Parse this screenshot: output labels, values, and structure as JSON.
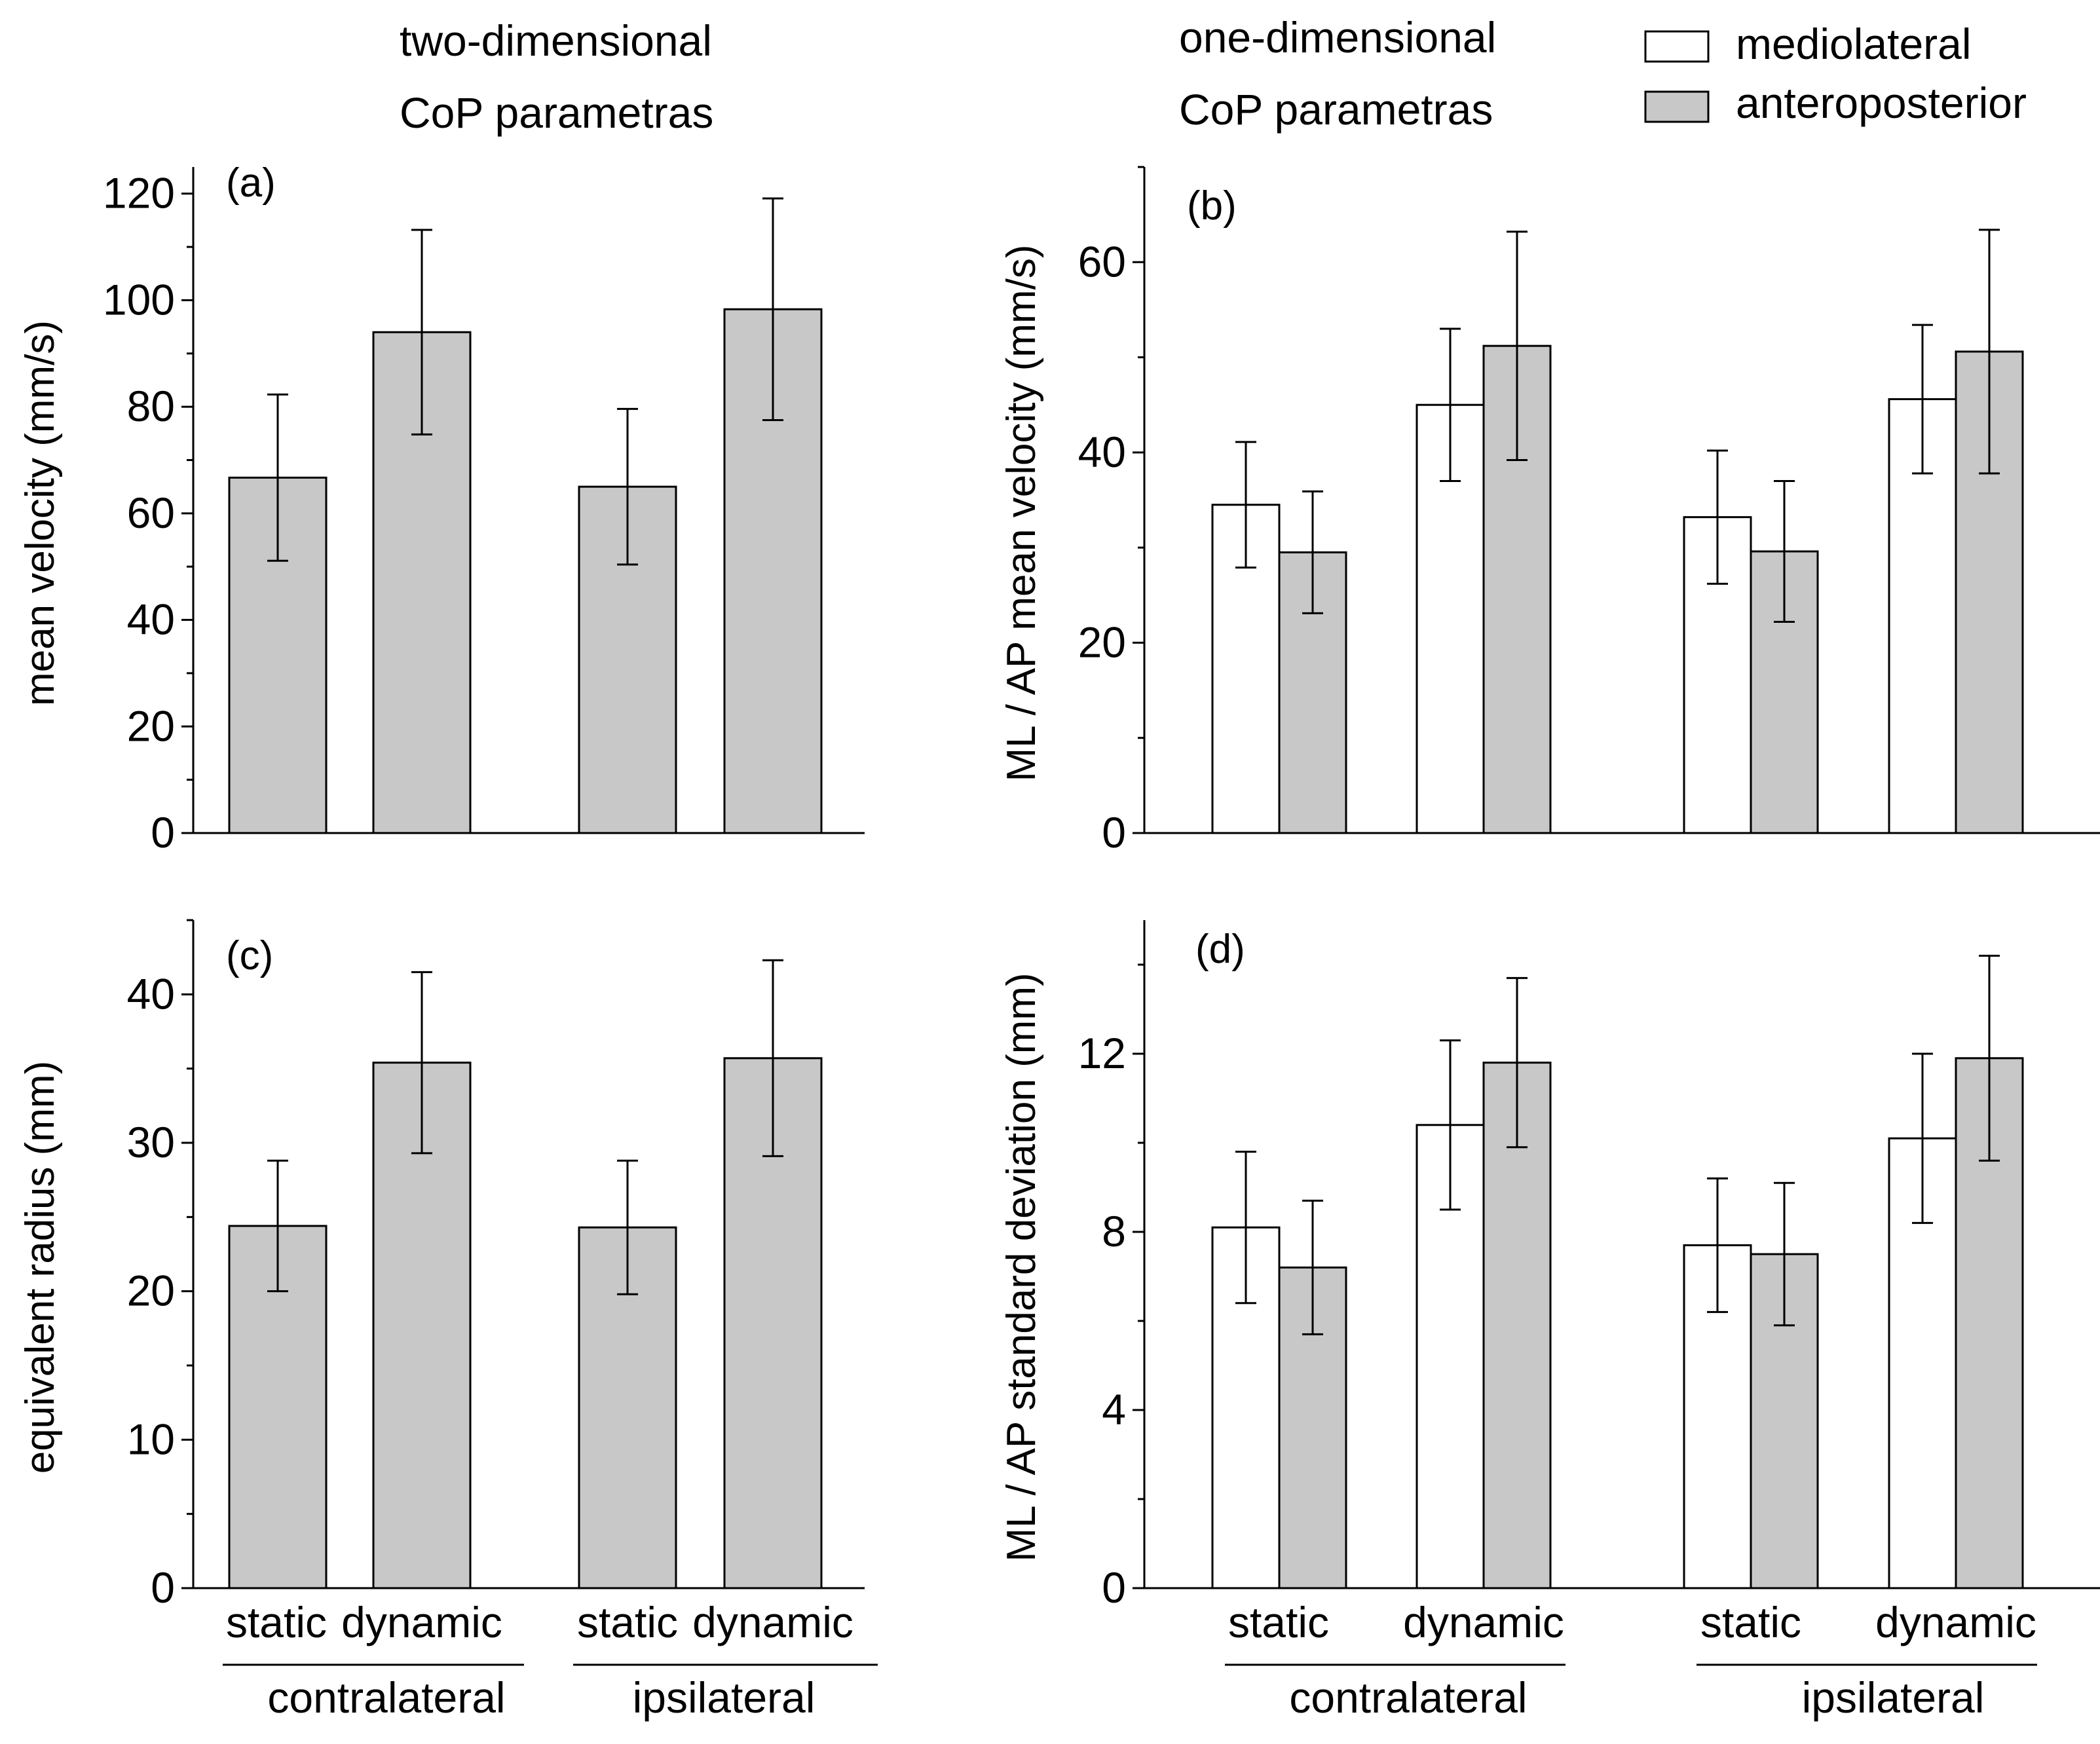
{
  "header": {
    "left_line1": "two-dimensional",
    "left_line2": "CoP parametras",
    "right_line1": "one-dimensional",
    "right_line2": "CoP parametras"
  },
  "legend": {
    "ml": "mediolateral",
    "ap": "anteroposterior",
    "ml_color": "#ffffff",
    "ap_color": "#c8c8c8"
  },
  "chart_data": [
    {
      "id": "a",
      "type": "bar",
      "panel_label": "(a)",
      "ylabel": "mean velocity (mm/s)",
      "xlabel": "",
      "ylim": [
        0,
        125
      ],
      "yticks": [
        0,
        20,
        40,
        60,
        80,
        100,
        120
      ],
      "minor_step": 10,
      "categories": [
        "contralateral static",
        "contralateral dynamic",
        "ipsilateral static",
        "ipsilateral dynamic"
      ],
      "series": [
        {
          "name": "two-dimensional",
          "color": "#c8c8c8",
          "values": [
            66.7,
            94.0,
            65.0,
            98.3
          ],
          "errors": [
            15.6,
            19.2,
            14.6,
            20.8
          ]
        }
      ]
    },
    {
      "id": "b",
      "type": "bar",
      "panel_label": "(b)",
      "ylabel": "ML / AP mean velocity (mm/s)",
      "xlabel": "",
      "ylim": [
        0,
        70
      ],
      "yticks": [
        0,
        20,
        40,
        60
      ],
      "minor_step": 10,
      "categories": [
        "contralateral static",
        "contralateral dynamic",
        "ipsilateral static",
        "ipsilateral dynamic"
      ],
      "series": [
        {
          "name": "mediolateral",
          "color": "#ffffff",
          "values": [
            34.5,
            45.0,
            33.2,
            45.6
          ],
          "errors": [
            6.6,
            8.0,
            7.0,
            7.8
          ]
        },
        {
          "name": "anteroposterior",
          "color": "#c8c8c8",
          "values": [
            29.5,
            51.2,
            29.6,
            50.6
          ],
          "errors": [
            6.4,
            12.0,
            7.4,
            12.8
          ]
        }
      ]
    },
    {
      "id": "c",
      "type": "bar",
      "panel_label": "(c)",
      "ylabel": "equivalent radius (mm)",
      "xlabel": "",
      "ylim": [
        0,
        45
      ],
      "yticks": [
        0,
        10,
        20,
        30,
        40
      ],
      "minor_step": 5,
      "categories": [
        "contralateral static",
        "contralateral dynamic",
        "ipsilateral static",
        "ipsilateral dynamic"
      ],
      "series": [
        {
          "name": "two-dimensional",
          "color": "#c8c8c8",
          "values": [
            24.4,
            35.4,
            24.3,
            35.7
          ],
          "errors": [
            4.4,
            6.1,
            4.5,
            6.6
          ]
        }
      ]
    },
    {
      "id": "d",
      "type": "bar",
      "panel_label": "(d)",
      "ylabel": "ML / AP standard deviation (mm)",
      "xlabel": "",
      "ylim": [
        0,
        15
      ],
      "yticks": [
        0,
        4,
        8,
        12
      ],
      "minor_step": 2,
      "categories": [
        "contralateral static",
        "contralateral dynamic",
        "ipsilateral static",
        "ipsilateral dynamic"
      ],
      "series": [
        {
          "name": "mediolateral",
          "color": "#ffffff",
          "values": [
            8.1,
            10.4,
            7.7,
            10.1
          ],
          "errors": [
            1.7,
            1.9,
            1.5,
            1.9
          ]
        },
        {
          "name": "anteroposterior",
          "color": "#c8c8c8",
          "values": [
            7.2,
            11.8,
            7.5,
            11.9
          ],
          "errors": [
            1.5,
            1.9,
            1.6,
            2.3
          ]
        }
      ]
    }
  ],
  "x_axis": {
    "left": {
      "labels": [
        "static",
        "dynamic",
        "static",
        "dynamic"
      ],
      "groups": [
        "contralateral",
        "ipsilateral"
      ]
    },
    "right": {
      "labels": [
        "static",
        "dynamic",
        "static",
        "dynamic"
      ],
      "groups": [
        "contralateral",
        "ipsilateral"
      ]
    }
  }
}
